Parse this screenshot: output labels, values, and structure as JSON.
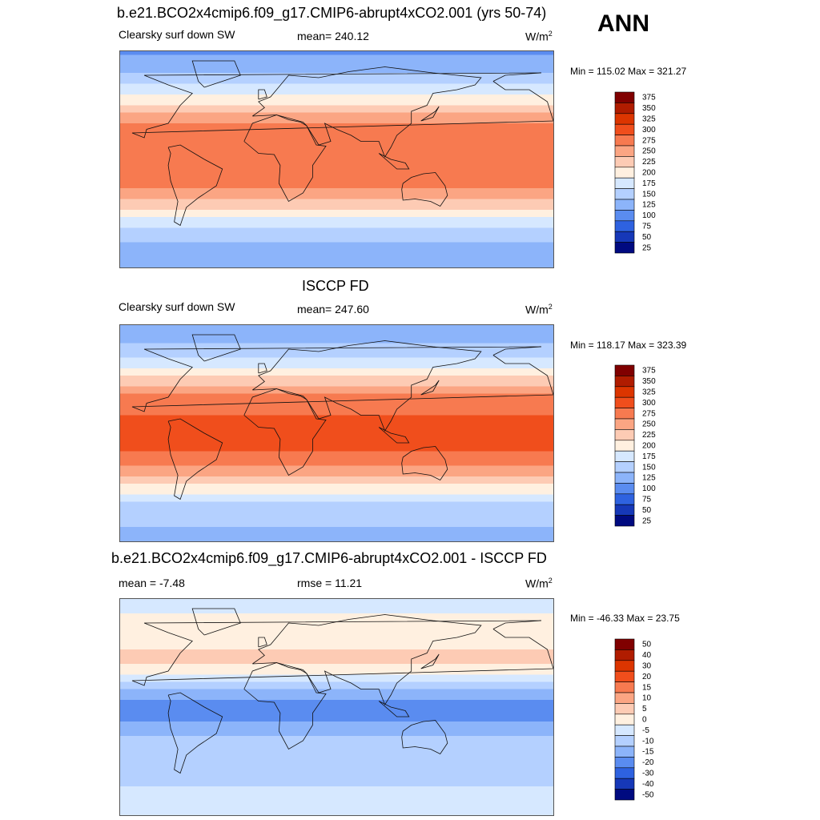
{
  "season": "ANN",
  "chart_data": [
    {
      "type": "heatmap",
      "title": "b.e21.BCO2x4cmip6.f09_g17.CMIP6-abrupt4xCO2.001 (yrs 50-74)",
      "left_label": "Clearsky surf down SW",
      "stat_label": "mean= 240.12",
      "units_base": "W/m",
      "units_sup": "2",
      "minmax": "Min = 115.02 Max = 321.27",
      "mean": 240.12,
      "min": 115.02,
      "max": 321.27,
      "levels": [
        "375",
        "350",
        "325",
        "300",
        "275",
        "250",
        "225",
        "200",
        "175",
        "150",
        "125",
        "100",
        "75",
        "50",
        "25"
      ],
      "colors": [
        "#800000",
        "#b01c00",
        "#dc3500",
        "#f04e1c",
        "#f77a50",
        "#fba583",
        "#fdcbb4",
        "#fff0e0",
        "#d6e8ff",
        "#b4d0ff",
        "#8cb4fa",
        "#5a8cf0",
        "#2e62e0",
        "#1638b8",
        "#000a80"
      ],
      "bands": [
        {
          "lat": 90,
          "v": 120
        },
        {
          "lat": 75,
          "v": 145
        },
        {
          "lat": 60,
          "v": 180
        },
        {
          "lat": 50,
          "v": 210
        },
        {
          "lat": 40,
          "v": 245
        },
        {
          "lat": 30,
          "v": 275
        },
        {
          "lat": 15,
          "v": 295
        },
        {
          "lat": 0,
          "v": 290
        },
        {
          "lat": -15,
          "v": 295
        },
        {
          "lat": -30,
          "v": 265
        },
        {
          "lat": -40,
          "v": 230
        },
        {
          "lat": -50,
          "v": 195
        },
        {
          "lat": -60,
          "v": 165
        },
        {
          "lat": -70,
          "v": 150
        },
        {
          "lat": -90,
          "v": 140
        }
      ]
    },
    {
      "type": "heatmap",
      "title": "ISCCP FD",
      "left_label": "Clearsky surf down SW",
      "stat_label": "mean= 247.60",
      "units_base": "W/m",
      "units_sup": "2",
      "minmax": "Min = 118.17 Max = 323.39",
      "mean": 247.6,
      "min": 118.17,
      "max": 323.39,
      "levels": [
        "375",
        "350",
        "325",
        "300",
        "275",
        "250",
        "225",
        "200",
        "175",
        "150",
        "125",
        "100",
        "75",
        "50",
        "25"
      ],
      "colors": [
        "#800000",
        "#b01c00",
        "#dc3500",
        "#f04e1c",
        "#f77a50",
        "#fba583",
        "#fdcbb4",
        "#fff0e0",
        "#d6e8ff",
        "#b4d0ff",
        "#8cb4fa",
        "#5a8cf0",
        "#2e62e0",
        "#1638b8",
        "#000a80"
      ],
      "bands": [
        {
          "lat": 90,
          "v": 125
        },
        {
          "lat": 75,
          "v": 150
        },
        {
          "lat": 60,
          "v": 185
        },
        {
          "lat": 50,
          "v": 215
        },
        {
          "lat": 40,
          "v": 250
        },
        {
          "lat": 30,
          "v": 280
        },
        {
          "lat": 15,
          "v": 300
        },
        {
          "lat": 0,
          "v": 310
        },
        {
          "lat": -15,
          "v": 300
        },
        {
          "lat": -30,
          "v": 270
        },
        {
          "lat": -40,
          "v": 235
        },
        {
          "lat": -50,
          "v": 200
        },
        {
          "lat": -60,
          "v": 170
        },
        {
          "lat": -70,
          "v": 155
        },
        {
          "lat": -90,
          "v": 140
        }
      ]
    },
    {
      "type": "heatmap",
      "title": "b.e21.BCO2x4cmip6.f09_g17.CMIP6-abrupt4xCO2.001 - ISCCP FD",
      "left_label": "mean =  -7.48",
      "stat_label": "rmse =  11.21",
      "units_base": "W/m",
      "units_sup": "2",
      "minmax": "Min = -46.33 Max =  23.75",
      "mean": -7.48,
      "rmse": 11.21,
      "min": -46.33,
      "max": 23.75,
      "levels": [
        "50",
        "40",
        "30",
        "20",
        "15",
        "10",
        "5",
        "0",
        "-5",
        "-10",
        "-15",
        "-20",
        "-30",
        "-40",
        "-50"
      ],
      "colors": [
        "#800000",
        "#b01c00",
        "#dc3500",
        "#f04e1c",
        "#f77a50",
        "#fba583",
        "#fdcbb4",
        "#fff0e0",
        "#d6e8ff",
        "#b4d0ff",
        "#8cb4fa",
        "#5a8cf0",
        "#2e62e0",
        "#1638b8",
        "#000a80"
      ],
      "bands": [
        {
          "lat": 90,
          "v": -3
        },
        {
          "lat": 70,
          "v": 2
        },
        {
          "lat": 55,
          "v": 4
        },
        {
          "lat": 40,
          "v": 6
        },
        {
          "lat": 30,
          "v": 3
        },
        {
          "lat": 20,
          "v": -6
        },
        {
          "lat": 10,
          "v": -14
        },
        {
          "lat": 0,
          "v": -18
        },
        {
          "lat": -10,
          "v": -16
        },
        {
          "lat": -20,
          "v": -12
        },
        {
          "lat": -30,
          "v": -8
        },
        {
          "lat": -45,
          "v": -9
        },
        {
          "lat": -60,
          "v": -6
        },
        {
          "lat": -75,
          "v": -4
        },
        {
          "lat": -90,
          "v": -3
        }
      ]
    }
  ]
}
